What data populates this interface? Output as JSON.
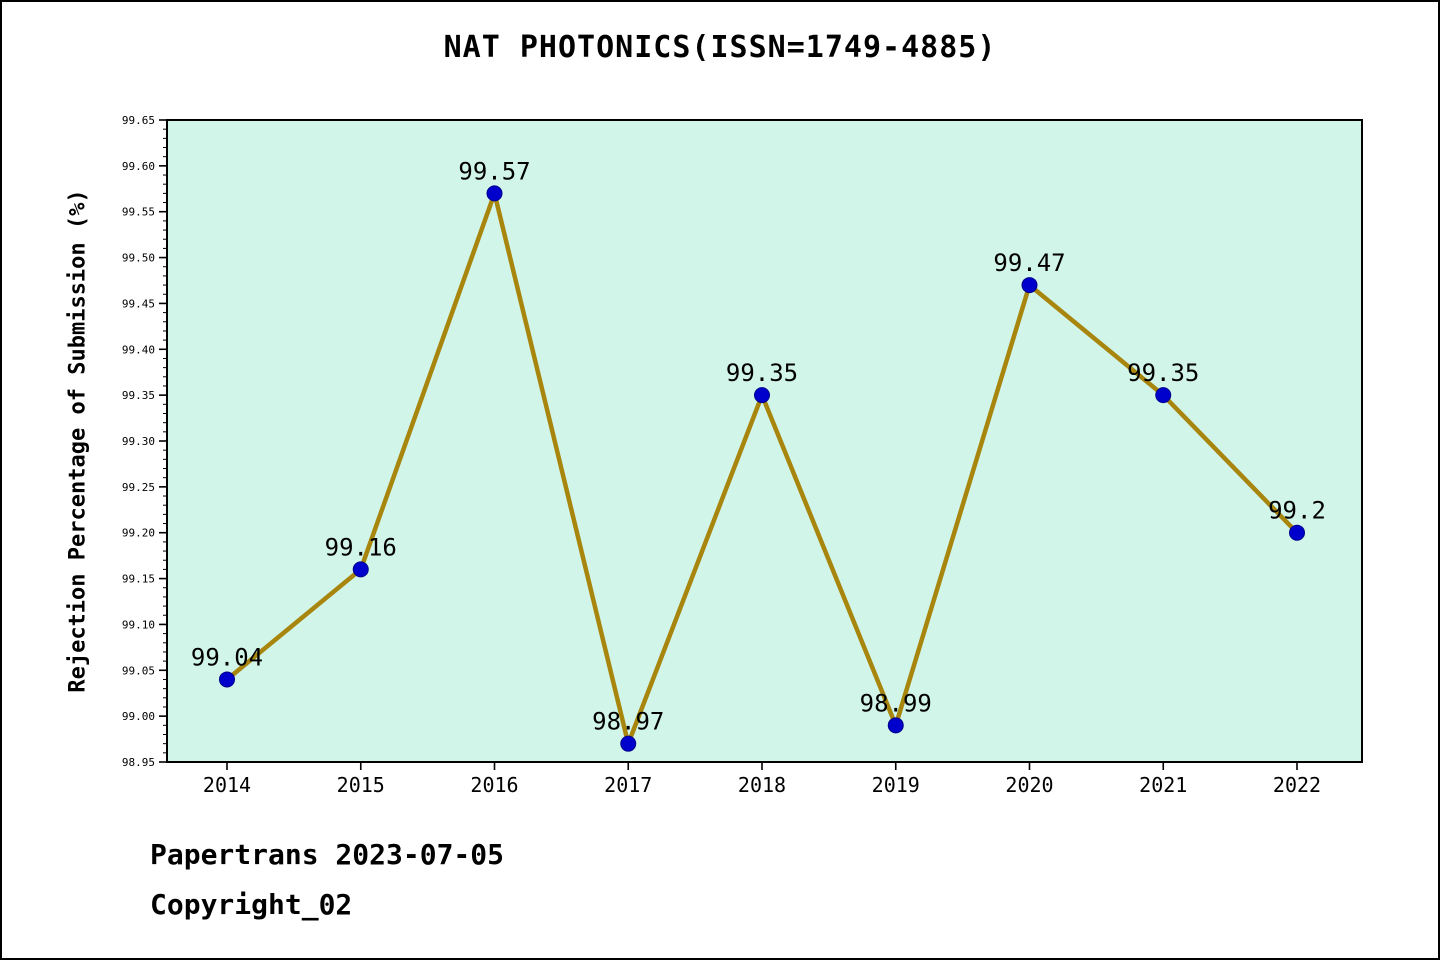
{
  "title": "NAT PHOTONICS(ISSN=1749-4885)",
  "footer": {
    "line1": "Papertrans 2023-07-05",
    "line2": "Copyright_02"
  },
  "chart_data": {
    "type": "line",
    "title": "NAT PHOTONICS(ISSN=1749-4885)",
    "xlabel": "",
    "ylabel": "Rejection Percentage of Submission (%)",
    "x": [
      2014,
      2015,
      2016,
      2017,
      2018,
      2019,
      2020,
      2021,
      2022
    ],
    "values": [
      99.04,
      99.16,
      99.57,
      98.97,
      99.35,
      98.99,
      99.47,
      99.35,
      99.2
    ],
    "point_labels": [
      "99.04",
      "99.16",
      "99.57",
      "98.97",
      "99.35",
      "98.99",
      "99.47",
      "99.35",
      "99.2"
    ],
    "ylim": [
      98.95,
      99.65
    ],
    "ytick_step": 0.05,
    "ytick_minor_step": 0.01,
    "grid": false,
    "legend": false,
    "colors": {
      "line": "#a8860d",
      "marker_fill": "#0000cd",
      "marker_edge": "#00008b",
      "plot_bg": "#d2f5e9",
      "axis": "#000000",
      "text": "#000000"
    }
  }
}
